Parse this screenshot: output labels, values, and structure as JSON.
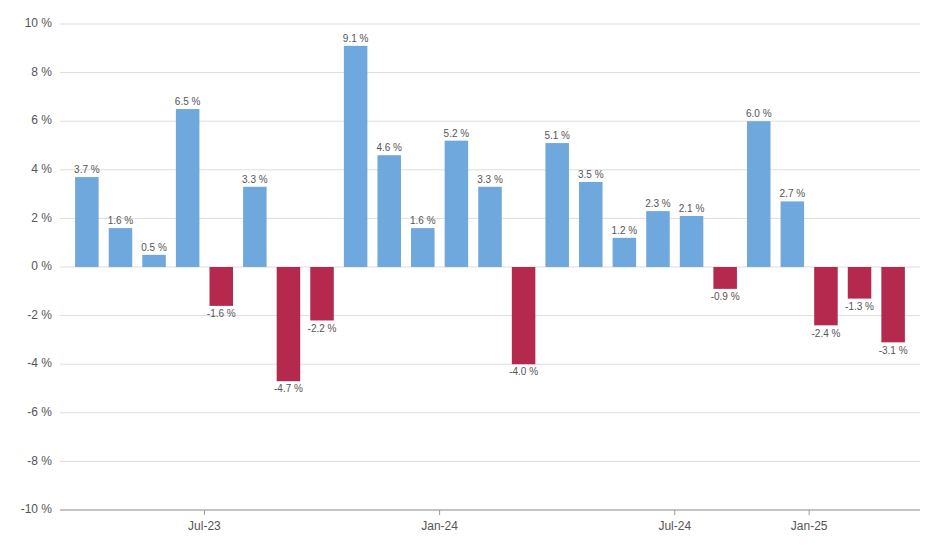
{
  "chart_data": {
    "type": "bar",
    "categories": [
      null,
      null,
      null,
      null,
      null,
      null,
      null,
      null,
      null,
      null,
      null,
      null,
      null,
      null,
      null,
      null,
      null,
      null,
      null,
      null,
      null,
      null,
      null,
      null,
      null
    ],
    "values": [
      3.7,
      1.6,
      0.5,
      6.5,
      -1.6,
      3.3,
      -4.7,
      -2.2,
      9.1,
      4.6,
      1.6,
      5.2,
      3.3,
      -4.0,
      5.1,
      3.5,
      1.2,
      2.3,
      2.1,
      -0.9,
      6.0,
      2.7,
      -2.4,
      -1.3,
      -3.1
    ],
    "value_labels": [
      "3.7 %",
      "1.6 %",
      "0.5 %",
      "6.5 %",
      "-1.6 %",
      "3.3 %",
      "-4.7 %",
      "-2.2 %",
      "9.1 %",
      "4.6 %",
      "1.6 %",
      "5.2 %",
      "3.3 %",
      "-4.0 %",
      "5.1 %",
      "3.5 %",
      "1.2 %",
      "2.3 %",
      "2.1 %",
      "-0.9 %",
      "6.0 %",
      "2.7 %",
      "-2.4 %",
      "-1.3 %",
      "-3.1 %"
    ],
    "colors": [
      "#6fa8dc",
      "#6fa8dc",
      "#6fa8dc",
      "#6fa8dc",
      "#b5294e",
      "#6fa8dc",
      "#b5294e",
      "#b5294e",
      "#6fa8dc",
      "#6fa8dc",
      "#6fa8dc",
      "#6fa8dc",
      "#6fa8dc",
      "#b5294e",
      "#6fa8dc",
      "#6fa8dc",
      "#6fa8dc",
      "#6fa8dc",
      "#6fa8dc",
      "#b5294e",
      "#6fa8dc",
      "#6fa8dc",
      "#b5294e",
      "#b5294e",
      "#b5294e"
    ],
    "data_labels": true,
    "ylim": [
      -10,
      10
    ],
    "yticks": [
      {
        "value": -10,
        "label": "-10 %"
      },
      {
        "value": -8,
        "label": "-8 %"
      },
      {
        "value": -6,
        "label": "-6 %"
      },
      {
        "value": -4,
        "label": "-4 %"
      },
      {
        "value": -2,
        "label": "-2 %"
      },
      {
        "value": 0,
        "label": "0 %"
      },
      {
        "value": 2,
        "label": "2 %"
      },
      {
        "value": 4,
        "label": "4 %"
      },
      {
        "value": 6,
        "label": "6 %"
      },
      {
        "value": 8,
        "label": "8 %"
      },
      {
        "value": 10,
        "label": "10 %"
      }
    ],
    "xlim": [
      -0.8,
      24.8
    ],
    "xticks": [
      {
        "value": 3.5,
        "label": "Jul-23"
      },
      {
        "value": 10.5,
        "label": "Jan-24"
      },
      {
        "value": 17.5,
        "label": "Jul-24"
      },
      {
        "value": 21.5,
        "label": "Jan-25"
      }
    ],
    "grid": true
  }
}
